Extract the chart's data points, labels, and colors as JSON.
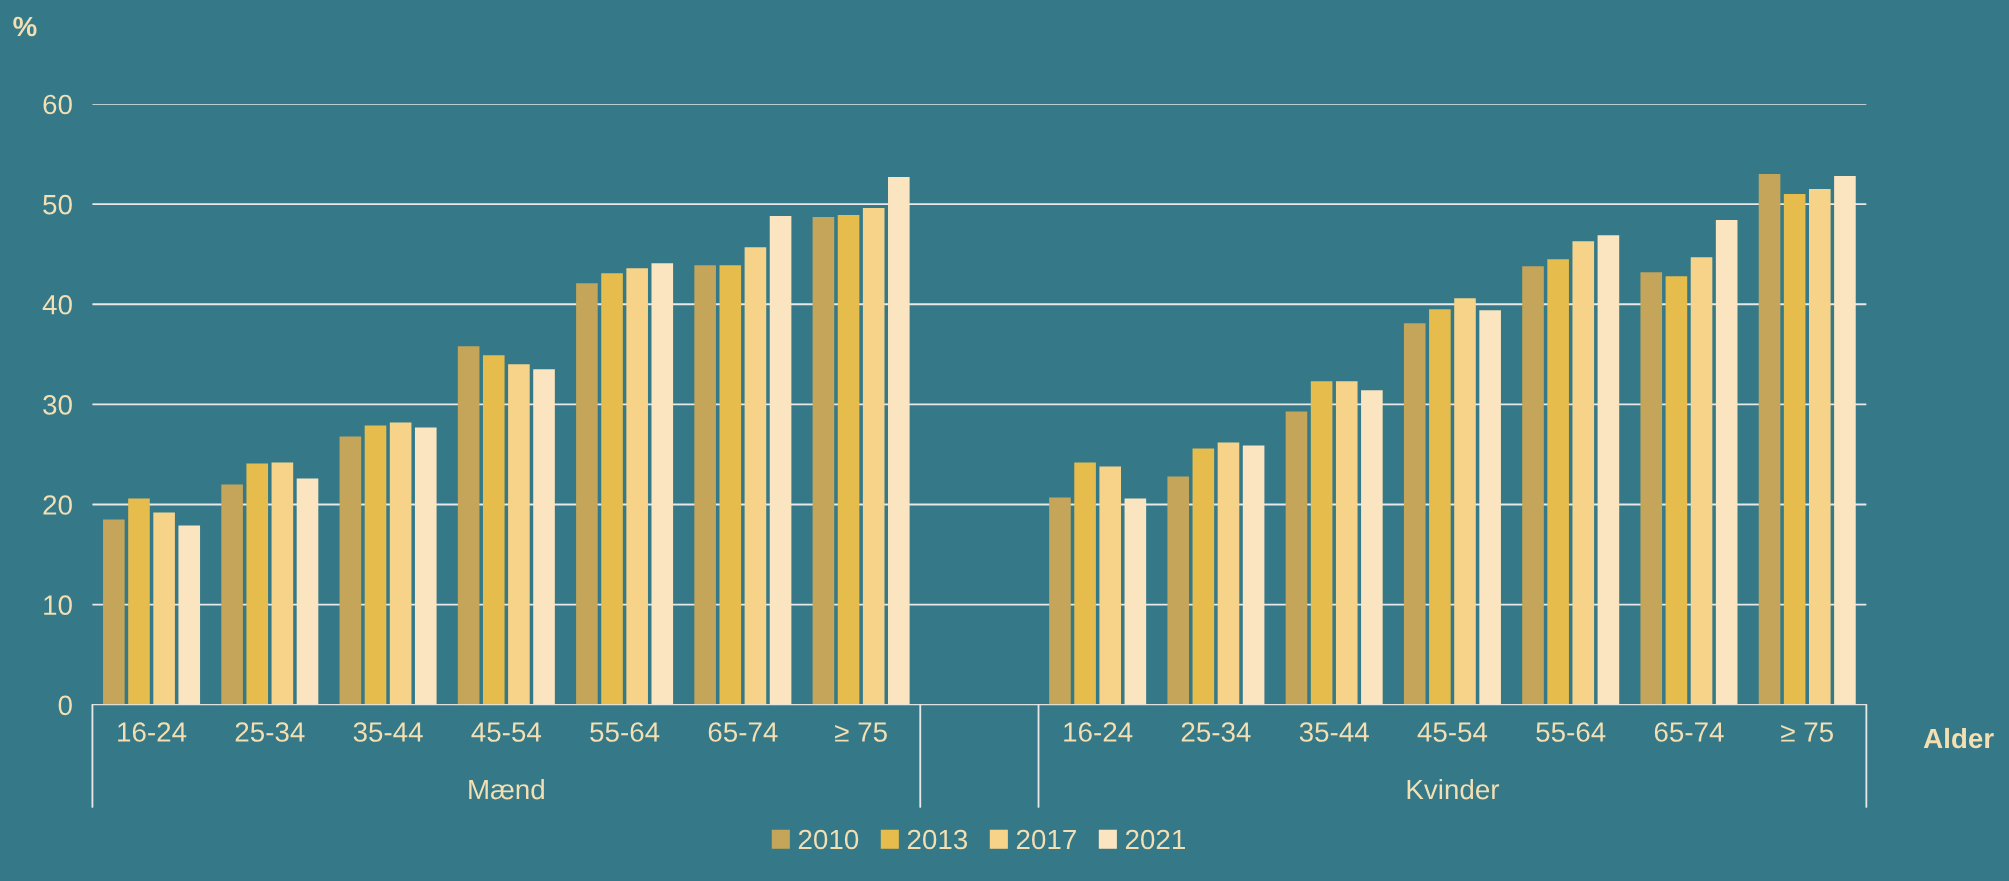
{
  "chart_data": {
    "type": "bar",
    "ylabel": "%",
    "xlabel": "Alder",
    "categories": [
      "16-24",
      "25-34",
      "35-44",
      "45-54",
      "55-64",
      "65-74",
      "≥ 75",
      null,
      "16-24",
      "25-34",
      "35-44",
      "45-54",
      "55-64",
      "65-74",
      "≥ 75"
    ],
    "series": [
      {
        "name": "2010",
        "color": "#c4a55a",
        "values": [
          18.5,
          22.0,
          26.8,
          35.8,
          42.1,
          43.9,
          48.7,
          null,
          20.7,
          22.8,
          29.3,
          38.1,
          43.8,
          43.2,
          53.0
        ]
      },
      {
        "name": "2013",
        "color": "#e6bc4c",
        "values": [
          20.6,
          24.1,
          27.9,
          34.9,
          43.1,
          43.9,
          48.9,
          null,
          24.2,
          25.6,
          32.3,
          39.5,
          44.5,
          42.8,
          51.0
        ]
      },
      {
        "name": "2017",
        "color": "#f7d38a",
        "values": [
          19.2,
          24.2,
          28.2,
          34.0,
          43.6,
          45.7,
          49.6,
          null,
          23.8,
          26.2,
          32.3,
          40.6,
          46.3,
          44.7,
          51.5
        ]
      },
      {
        "name": "2021",
        "color": "#fbe5c0",
        "values": [
          17.9,
          22.6,
          27.7,
          33.5,
          44.1,
          48.8,
          52.7,
          null,
          20.6,
          25.9,
          31.4,
          39.4,
          46.9,
          48.4,
          52.8
        ]
      }
    ],
    "annotations": [
      "Mænd",
      "Kvinder"
    ],
    "ylim": [
      0,
      60
    ],
    "yticks": [
      0,
      10,
      20,
      30,
      40,
      50,
      60
    ],
    "grid": "y",
    "legend": "bottom"
  }
}
